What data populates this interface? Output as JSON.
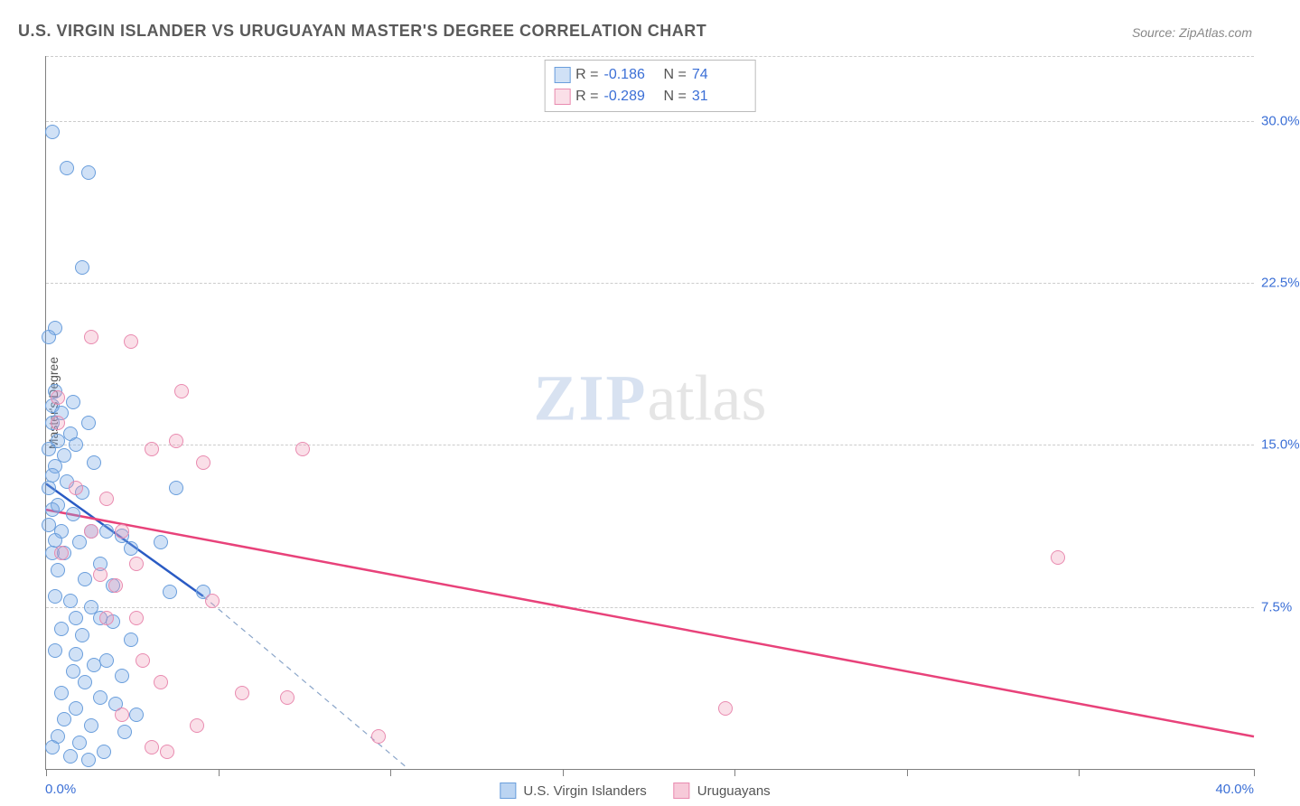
{
  "title": "U.S. VIRGIN ISLANDER VS URUGUAYAN MASTER'S DEGREE CORRELATION CHART",
  "source": "Source: ZipAtlas.com",
  "ylabel": "Master's Degree",
  "watermark_zip": "ZIP",
  "watermark_atlas": "atlas",
  "xaxis": {
    "min": 0,
    "max": 40,
    "label_min": "0.0%",
    "label_max": "40.0%",
    "tick_positions": [
      0,
      5.7,
      11.4,
      17.1,
      22.8,
      28.5,
      34.2,
      40
    ]
  },
  "yaxis": {
    "min": 0,
    "max": 33,
    "ticks": [
      7.5,
      15.0,
      22.5,
      30.0
    ],
    "tick_labels": [
      "7.5%",
      "15.0%",
      "22.5%",
      "30.0%"
    ]
  },
  "series": [
    {
      "name": "U.S. Virgin Islanders",
      "color_fill": "rgba(120,170,230,0.35)",
      "color_stroke": "#6a9edc",
      "marker_radius": 8,
      "R": "-0.186",
      "N": "74",
      "trend": {
        "x1": 0,
        "y1": 13.2,
        "x2": 5.2,
        "y2": 8.0,
        "color": "#2a5bc4",
        "width": 2.5
      },
      "trend_dash": {
        "x1": 5.2,
        "y1": 8.0,
        "x2": 12.0,
        "y2": 0,
        "color": "#8aa5c9",
        "width": 1.2
      },
      "points": [
        [
          0.2,
          29.5
        ],
        [
          0.7,
          27.8
        ],
        [
          1.4,
          27.6
        ],
        [
          1.2,
          23.2
        ],
        [
          0.3,
          20.4
        ],
        [
          0.1,
          20.0
        ],
        [
          0.3,
          17.5
        ],
        [
          0.9,
          17.0
        ],
        [
          0.2,
          16.8
        ],
        [
          0.5,
          16.5
        ],
        [
          1.4,
          16.0
        ],
        [
          0.2,
          16.0
        ],
        [
          0.8,
          15.5
        ],
        [
          0.4,
          15.2
        ],
        [
          1.0,
          15.0
        ],
        [
          0.1,
          14.8
        ],
        [
          0.6,
          14.5
        ],
        [
          1.6,
          14.2
        ],
        [
          0.3,
          14.0
        ],
        [
          0.2,
          13.6
        ],
        [
          0.7,
          13.3
        ],
        [
          0.1,
          13.0
        ],
        [
          1.2,
          12.8
        ],
        [
          4.3,
          13.0
        ],
        [
          0.4,
          12.2
        ],
        [
          0.2,
          12.0
        ],
        [
          0.9,
          11.8
        ],
        [
          0.1,
          11.3
        ],
        [
          1.5,
          11.0
        ],
        [
          0.5,
          11.0
        ],
        [
          2.0,
          11.0
        ],
        [
          0.3,
          10.6
        ],
        [
          1.1,
          10.5
        ],
        [
          2.8,
          10.2
        ],
        [
          0.2,
          10.0
        ],
        [
          0.6,
          10.0
        ],
        [
          3.8,
          10.5
        ],
        [
          2.5,
          10.8
        ],
        [
          1.8,
          9.5
        ],
        [
          0.4,
          9.2
        ],
        [
          1.3,
          8.8
        ],
        [
          2.2,
          8.5
        ],
        [
          5.2,
          8.2
        ],
        [
          4.1,
          8.2
        ],
        [
          0.3,
          8.0
        ],
        [
          0.8,
          7.8
        ],
        [
          1.5,
          7.5
        ],
        [
          1.0,
          7.0
        ],
        [
          1.8,
          7.0
        ],
        [
          2.2,
          6.8
        ],
        [
          0.5,
          6.5
        ],
        [
          1.2,
          6.2
        ],
        [
          2.8,
          6.0
        ],
        [
          0.3,
          5.5
        ],
        [
          1.0,
          5.3
        ],
        [
          2.0,
          5.0
        ],
        [
          1.6,
          4.8
        ],
        [
          0.9,
          4.5
        ],
        [
          2.5,
          4.3
        ],
        [
          1.3,
          4.0
        ],
        [
          0.5,
          3.5
        ],
        [
          1.8,
          3.3
        ],
        [
          2.3,
          3.0
        ],
        [
          1.0,
          2.8
        ],
        [
          3.0,
          2.5
        ],
        [
          0.6,
          2.3
        ],
        [
          1.5,
          2.0
        ],
        [
          2.6,
          1.7
        ],
        [
          0.4,
          1.5
        ],
        [
          1.1,
          1.2
        ],
        [
          0.2,
          1.0
        ],
        [
          1.9,
          0.8
        ],
        [
          0.8,
          0.6
        ],
        [
          1.4,
          0.4
        ]
      ]
    },
    {
      "name": "Uruguayans",
      "color_fill": "rgba(240,150,180,0.3)",
      "color_stroke": "#e98bb0",
      "marker_radius": 8,
      "R": "-0.289",
      "N": "31",
      "trend": {
        "x1": 0,
        "y1": 12.0,
        "x2": 40,
        "y2": 1.5,
        "color": "#e8427a",
        "width": 2.5
      },
      "points": [
        [
          1.5,
          20.0
        ],
        [
          2.8,
          19.8
        ],
        [
          0.4,
          17.2
        ],
        [
          0.4,
          16.0
        ],
        [
          4.5,
          17.5
        ],
        [
          3.5,
          14.8
        ],
        [
          4.3,
          15.2
        ],
        [
          8.5,
          14.8
        ],
        [
          5.2,
          14.2
        ],
        [
          1.0,
          13.0
        ],
        [
          2.0,
          12.5
        ],
        [
          1.5,
          11.0
        ],
        [
          2.5,
          11.0
        ],
        [
          0.5,
          10.0
        ],
        [
          3.0,
          9.5
        ],
        [
          1.8,
          9.0
        ],
        [
          2.3,
          8.5
        ],
        [
          5.5,
          7.8
        ],
        [
          3.0,
          7.0
        ],
        [
          2.0,
          7.0
        ],
        [
          3.2,
          5.0
        ],
        [
          3.8,
          4.0
        ],
        [
          6.5,
          3.5
        ],
        [
          8.0,
          3.3
        ],
        [
          2.5,
          2.5
        ],
        [
          5.0,
          2.0
        ],
        [
          11.0,
          1.5
        ],
        [
          4.0,
          0.8
        ],
        [
          3.5,
          1.0
        ],
        [
          22.5,
          2.8
        ],
        [
          33.5,
          9.8
        ]
      ]
    }
  ],
  "legend_bottom": [
    {
      "label": "U.S. Virgin Islanders",
      "fill": "rgba(120,170,230,0.5)",
      "stroke": "#6a9edc"
    },
    {
      "label": "Uruguayans",
      "fill": "rgba(240,150,180,0.5)",
      "stroke": "#e98bb0"
    }
  ],
  "colors": {
    "grid": "#cccccc",
    "axis": "#808080",
    "ticklabel": "#3b6fd6"
  }
}
